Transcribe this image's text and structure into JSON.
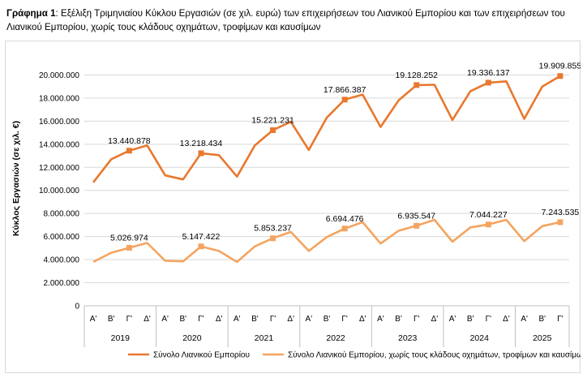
{
  "caption": {
    "label": "Γράφημα 1",
    "text": ": Εξέλιξη Τριμηνιαίου Κύκλου Εργασιών (σε χιλ. ευρώ) των επιχειρήσεων του Λιανικού Εμπορίου και των επιχειρήσεων του Λιανικού Εμπορίου, χωρίς τους κλάδους οχημάτων, τροφίμων και καυσίμων"
  },
  "chart_data": {
    "type": "line",
    "ylabel": "Κύκλος Εργασιών (σε χιλ. €)",
    "ylim": [
      0,
      22000000
    ],
    "yticks": [
      0,
      2000000,
      4000000,
      6000000,
      8000000,
      10000000,
      12000000,
      14000000,
      16000000,
      18000000,
      20000000
    ],
    "ytick_labels": [
      "0",
      "2.000.000",
      "4.000.000",
      "6.000.000",
      "8.000.000",
      "10.000.000",
      "12.000.000",
      "14.000.000",
      "16.000.000",
      "18.000.000",
      "20.000.000"
    ],
    "grid": true,
    "legend_position": "bottom",
    "quarter_labels": [
      "Α'",
      "Β'",
      "Γ'",
      "Δ'",
      "Α'",
      "Β'",
      "Γ'",
      "Δ'",
      "Α'",
      "Β'",
      "Γ'",
      "Δ'",
      "Α'",
      "Β'",
      "Γ'",
      "Δ'",
      "Α'",
      "Β'",
      "Γ'",
      "Δ'",
      "Α'",
      "Β'",
      "Γ'",
      "Δ'",
      "Α'",
      "Β'",
      "Γ'"
    ],
    "years": [
      {
        "label": "2019",
        "quarters": 4
      },
      {
        "label": "2020",
        "quarters": 4
      },
      {
        "label": "2021",
        "quarters": 4
      },
      {
        "label": "2022",
        "quarters": 4
      },
      {
        "label": "2023",
        "quarters": 4
      },
      {
        "label": "2024",
        "quarters": 4
      },
      {
        "label": "2025",
        "quarters": 3
      }
    ],
    "series": [
      {
        "name": "Σύνολο Λιανικού Εμπορίου",
        "color": "#E8782E",
        "values": [
          10700000,
          12700000,
          13440878,
          13900000,
          11300000,
          10950000,
          13218434,
          13050000,
          11200000,
          13900000,
          15221231,
          15950000,
          13500000,
          16300000,
          17866387,
          18300000,
          15500000,
          17800000,
          19128252,
          19150000,
          16100000,
          18600000,
          19336137,
          19450000,
          16200000,
          19000000,
          19909855
        ],
        "labels": [
          {
            "index": 2,
            "text": "13.440.878"
          },
          {
            "index": 6,
            "text": "13.218.434"
          },
          {
            "index": 10,
            "text": "15.221.231"
          },
          {
            "index": 14,
            "text": "17.866.387"
          },
          {
            "index": 18,
            "text": "19.128.252"
          },
          {
            "index": 22,
            "text": "19.336.137"
          },
          {
            "index": 26,
            "text": "19.909.855"
          }
        ]
      },
      {
        "name": "Σύνολο Λιανικού Εμπορίου, χωρίς τους κλάδους οχημάτων, τροφίμων και καυσίμων",
        "color": "#F4A460",
        "values": [
          3800000,
          4600000,
          5026974,
          5450000,
          3900000,
          3850000,
          5147422,
          4750000,
          3800000,
          5150000,
          5853237,
          6400000,
          4750000,
          5950000,
          6694476,
          7250000,
          5400000,
          6500000,
          6935547,
          7450000,
          5550000,
          6800000,
          7044227,
          7450000,
          5600000,
          6900000,
          7243535
        ],
        "labels": [
          {
            "index": 2,
            "text": "5.026.974"
          },
          {
            "index": 6,
            "text": "5.147.422"
          },
          {
            "index": 10,
            "text": "5.853.237"
          },
          {
            "index": 14,
            "text": "6.694.476"
          },
          {
            "index": 18,
            "text": "6.935.547"
          },
          {
            "index": 22,
            "text": "7.044.227"
          },
          {
            "index": 26,
            "text": "7.243.535"
          }
        ]
      }
    ]
  }
}
